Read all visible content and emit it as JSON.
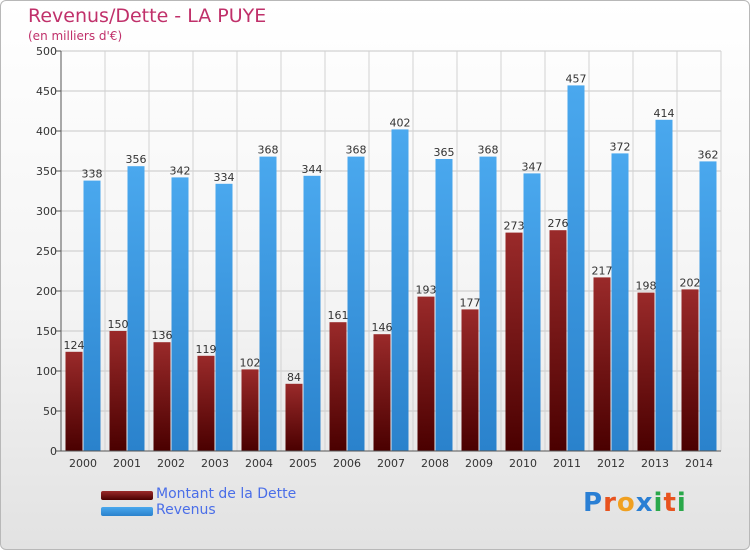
{
  "header": {
    "title": "Revenus/Dette - LA PUYE",
    "subtitle": "(en milliers d'€)"
  },
  "chart_data": {
    "type": "bar",
    "categories": [
      "2000",
      "2001",
      "2002",
      "2003",
      "2004",
      "2005",
      "2006",
      "2007",
      "2008",
      "2009",
      "2010",
      "2011",
      "2012",
      "2013",
      "2014"
    ],
    "series": [
      {
        "name": "Montant de la Dette",
        "values": [
          124,
          150,
          136,
          119,
          102,
          84,
          161,
          146,
          193,
          177,
          273,
          276,
          217,
          198,
          202
        ],
        "color": "#8b1a1a"
      },
      {
        "name": "Revenus",
        "values": [
          338,
          356,
          342,
          334,
          368,
          344,
          368,
          402,
          365,
          368,
          347,
          457,
          372,
          414,
          362
        ],
        "color": "#3d9be0"
      }
    ],
    "yticks": [
      0,
      50,
      100,
      150,
      200,
      250,
      300,
      350,
      400,
      450,
      500
    ],
    "ylim": [
      0,
      500
    ],
    "grid": true,
    "legend_position": "bottom-left"
  },
  "legend": {
    "items": [
      {
        "label": "Montant de la Dette",
        "color": "#7a1010"
      },
      {
        "label": "Revenus",
        "color": "#3d9be0"
      }
    ]
  },
  "logo": {
    "text": "Proxiti",
    "letter_colors": [
      "#2a7fd4",
      "#e8531e",
      "#f0a020",
      "#2a7fd4",
      "#2aa84a",
      "#e8531e",
      "#2aa84a"
    ]
  }
}
